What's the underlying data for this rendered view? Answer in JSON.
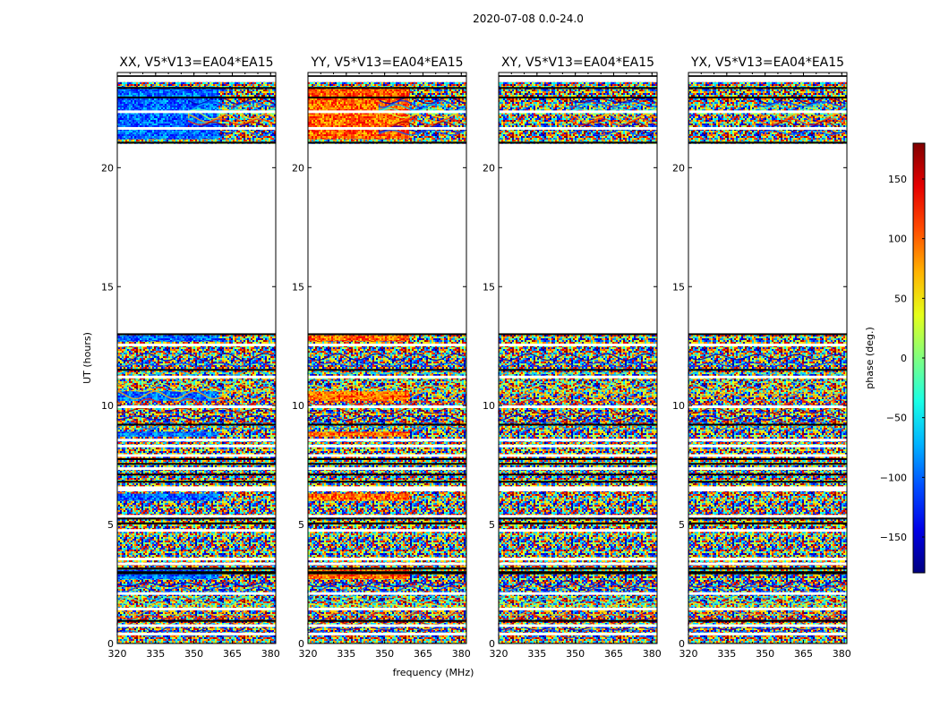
{
  "figure": {
    "suptitle": "2020-07-08 0.0-24.0"
  },
  "chart_data": {
    "type": "heatmap",
    "title": "2020-07-08 0.0-24.0",
    "xlabel": "frequency (MHz)",
    "ylabel": "UT (hours)",
    "xlim": [
      320,
      382
    ],
    "ylim": [
      0,
      24
    ],
    "xticks": [
      320,
      335,
      350,
      365,
      380
    ],
    "yticks": [
      0,
      5,
      10,
      15,
      20
    ],
    "panels": [
      {
        "title": "XX, V5*V13=EA04*EA15"
      },
      {
        "title": "YY, V5*V13=EA04*EA15"
      },
      {
        "title": "XY, V5*V13=EA04*EA15"
      },
      {
        "title": "YX, V5*V13=EA04*EA15"
      }
    ],
    "no_data_interval_hours": [
      13.0,
      21.0
    ],
    "colorbar": {
      "label": "phase (deg.)",
      "range": [
        -180,
        180
      ],
      "ticks": [
        -150,
        -100,
        -50,
        0,
        50,
        100,
        150
      ],
      "colormap": "jet"
    }
  }
}
